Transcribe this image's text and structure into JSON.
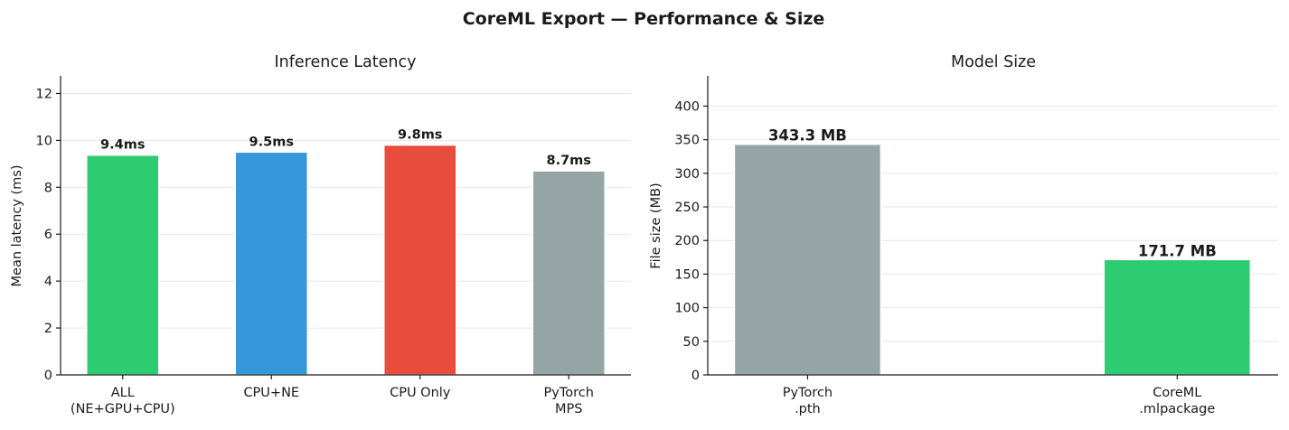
{
  "suptitle": "CoreML Export — Performance & Size",
  "chart_data": [
    {
      "type": "bar",
      "title": "Inference Latency",
      "xlabel": "",
      "ylabel": "Mean latency (ms)",
      "ylim": [
        0,
        12.75
      ],
      "yticks": [
        0,
        2,
        4,
        6,
        8,
        10,
        12
      ],
      "categories": [
        "ALL\n(NE+GPU+CPU)",
        "CPU+NE",
        "CPU Only",
        "PyTorch\nMPS"
      ],
      "values": [
        9.37,
        9.5,
        9.8,
        8.7
      ],
      "data_labels": [
        "9.4ms",
        "9.5ms",
        "9.8ms",
        "8.7ms"
      ],
      "colors": [
        "#2ecc71",
        "#3498db",
        "#e74c3c",
        "#95a5a6"
      ],
      "grid": true
    },
    {
      "type": "bar",
      "title": "Model Size",
      "xlabel": "",
      "ylabel": "File size (MB)",
      "ylim": [
        0,
        445
      ],
      "yticks": [
        0,
        50,
        100,
        150,
        200,
        250,
        300,
        350,
        400
      ],
      "categories": [
        "PyTorch\n.pth",
        "CoreML\n.mlpackage"
      ],
      "values": [
        343.3,
        171.7
      ],
      "data_labels": [
        "343.3 MB",
        "171.7 MB"
      ],
      "colors": [
        "#95a5a6",
        "#2ecc71"
      ],
      "grid": true
    }
  ]
}
